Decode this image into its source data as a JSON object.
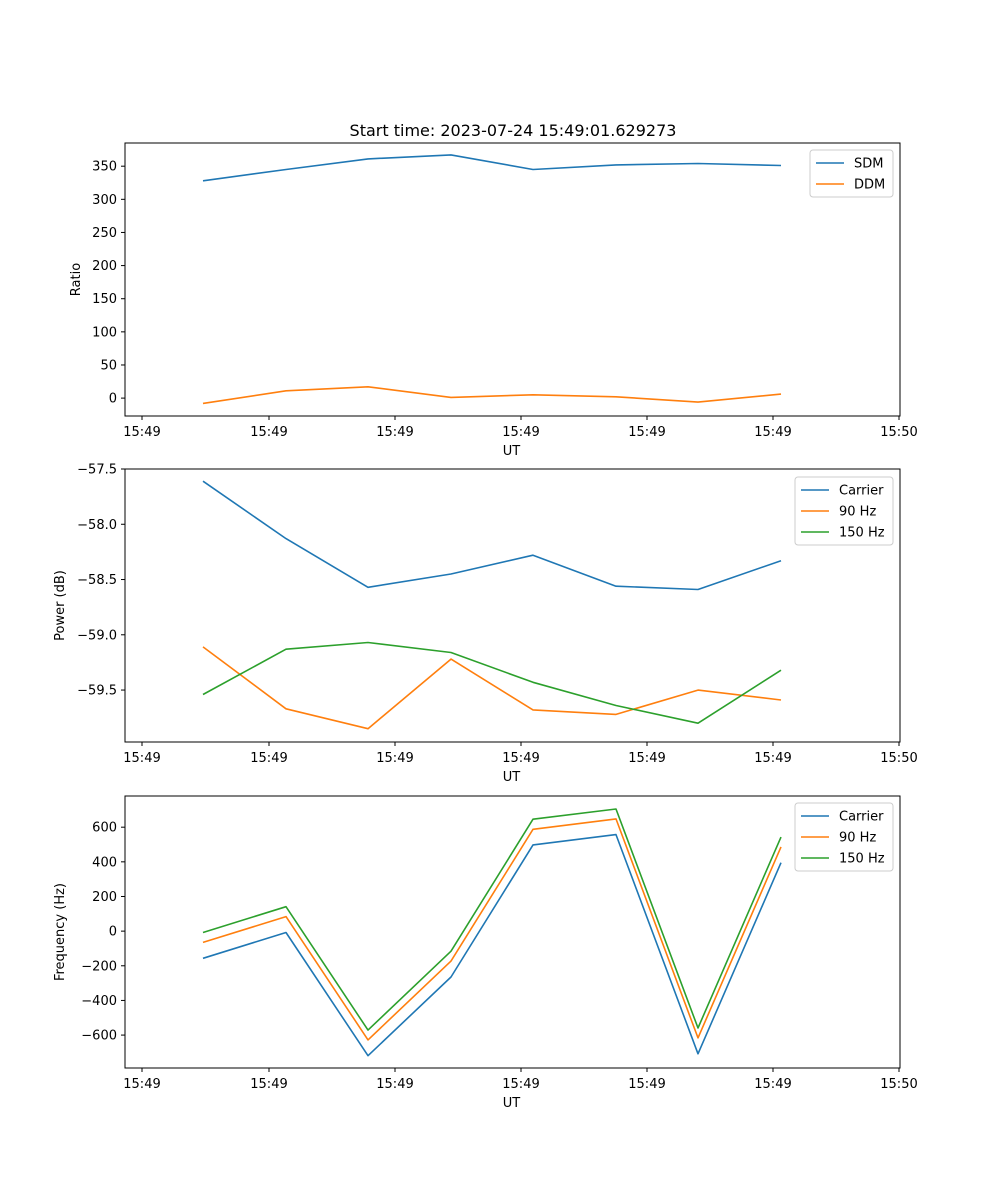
{
  "title": "Start time: 2023-07-24 15:49:01.629273",
  "chart_data": [
    {
      "type": "line",
      "xlabel": "UT",
      "ylabel": "Ratio",
      "x_tick_labels": [
        "15:49",
        "15:49",
        "15:49",
        "15:49",
        "15:49",
        "15:49",
        "15:49"
      ],
      "x_end_tick_label": "15:50",
      "ylim": [
        -27,
        385
      ],
      "yticks": [
        0,
        50,
        100,
        150,
        200,
        250,
        300,
        350
      ],
      "ytick_labels": [
        "0",
        "50",
        "100",
        "150",
        "200",
        "250",
        "300",
        "350"
      ],
      "legend_position": "top-right",
      "series": [
        {
          "name": "SDM",
          "color": "#1f77b4",
          "values": [
            328,
            345,
            361,
            367,
            345,
            352,
            354,
            351
          ]
        },
        {
          "name": "DDM",
          "color": "#ff7f0e",
          "values": [
            -8,
            11,
            17,
            1,
            5,
            2,
            -6,
            6
          ]
        }
      ]
    },
    {
      "type": "line",
      "xlabel": "UT",
      "ylabel": "Power (dB)",
      "x_tick_labels": [
        "15:49",
        "15:49",
        "15:49",
        "15:49",
        "15:49",
        "15:49",
        "15:49"
      ],
      "x_end_tick_label": "15:50",
      "ylim": [
        -59.97,
        -57.5
      ],
      "yticks": [
        -59.5,
        -59.0,
        -58.5,
        -58.0,
        -57.5
      ],
      "ytick_labels": [
        "−59.5",
        "−59.0",
        "−58.5",
        "−58.0",
        "−57.5"
      ],
      "legend_position": "top-right",
      "series": [
        {
          "name": "Carrier",
          "color": "#1f77b4",
          "values": [
            -57.61,
            -58.13,
            -58.57,
            -58.45,
            -58.28,
            -58.56,
            -58.59,
            -58.33
          ]
        },
        {
          "name": "90 Hz",
          "color": "#ff7f0e",
          "values": [
            -59.11,
            -59.67,
            -59.85,
            -59.22,
            -59.68,
            -59.72,
            -59.5,
            -59.59
          ]
        },
        {
          "name": "150 Hz",
          "color": "#2ca02c",
          "values": [
            -59.54,
            -59.13,
            -59.07,
            -59.16,
            -59.43,
            -59.64,
            -59.8,
            -59.32
          ]
        }
      ]
    },
    {
      "type": "line",
      "xlabel": "UT",
      "ylabel": "Frequency (Hz)",
      "x_tick_labels": [
        "15:49",
        "15:49",
        "15:49",
        "15:49",
        "15:49",
        "15:49",
        "15:49"
      ],
      "x_end_tick_label": "15:50",
      "ylim": [
        -790,
        780
      ],
      "yticks": [
        -600,
        -400,
        -200,
        0,
        200,
        400,
        600
      ],
      "ytick_labels": [
        "−600",
        "−400",
        "−200",
        "0",
        "200",
        "400",
        "600"
      ],
      "legend_position": "top-right",
      "series": [
        {
          "name": "Carrier",
          "color": "#1f77b4",
          "values": [
            -157,
            -8,
            -719,
            -265,
            498,
            557,
            -708,
            395
          ]
        },
        {
          "name": "90 Hz",
          "color": "#ff7f0e",
          "values": [
            -65,
            84,
            -628,
            -173,
            588,
            648,
            -616,
            486
          ]
        },
        {
          "name": "150 Hz",
          "color": "#2ca02c",
          "values": [
            -8,
            141,
            -571,
            -116,
            646,
            705,
            -559,
            543
          ]
        }
      ]
    }
  ]
}
